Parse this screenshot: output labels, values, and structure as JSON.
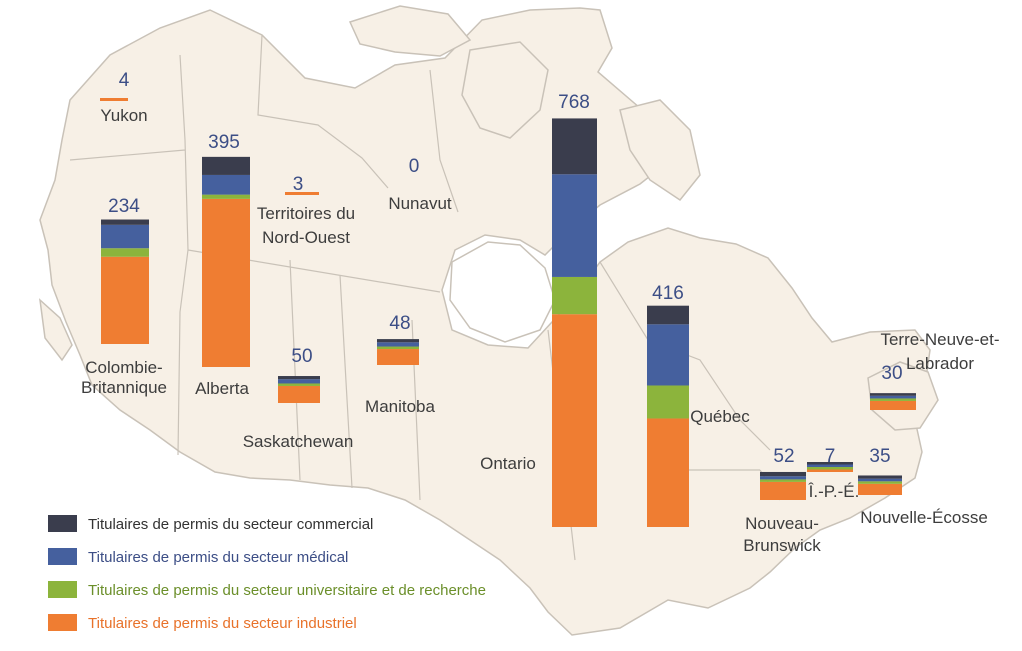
{
  "colors": {
    "commercial": "#3a3d4d",
    "medical": "#45609e",
    "university": "#8cb43c",
    "industrial": "#ef7d32",
    "map_fill": "#f7f0e6",
    "map_stroke": "#c9c2b8"
  },
  "chart_data": {
    "type": "bar",
    "stacked": true,
    "series": [
      {
        "name": "Titulaires de permis du secteur commercial",
        "key": "commercial"
      },
      {
        "name": "Titulaires de permis du secteur médical",
        "key": "medical"
      },
      {
        "name": "Titulaires de permis du secteur universitaire et de recherche",
        "key": "university"
      },
      {
        "name": "Titulaires de permis du secteur industriel",
        "key": "industrial"
      }
    ],
    "regions": [
      {
        "id": "yukon",
        "label": [
          "Yukon"
        ],
        "total": "4",
        "values": {
          "commercial": 0,
          "medical": 0,
          "university": 0,
          "industrial": 4
        }
      },
      {
        "id": "bc",
        "label": [
          "Colombie-",
          "Britannique"
        ],
        "total": "234",
        "values": {
          "commercial": 10,
          "medical": 44,
          "university": 16,
          "industrial": 164
        }
      },
      {
        "id": "alberta",
        "label": [
          "Alberta"
        ],
        "total": "395",
        "values": {
          "commercial": 34,
          "medical": 37,
          "university": 8,
          "industrial": 316
        }
      },
      {
        "id": "nwt",
        "label": [
          "Territoires du",
          "Nord-Ouest"
        ],
        "total": "3",
        "values": {
          "commercial": 0,
          "medical": 0,
          "university": 0,
          "industrial": 3
        }
      },
      {
        "id": "nunavut",
        "label": [
          "Nunavut"
        ],
        "total": "0",
        "values": {
          "commercial": 0,
          "medical": 0,
          "university": 0,
          "industrial": 0
        }
      },
      {
        "id": "saskatchewan",
        "label": [
          "Saskatchewan"
        ],
        "total": "50",
        "values": {
          "commercial": 6,
          "medical": 8,
          "university": 4,
          "industrial": 32
        }
      },
      {
        "id": "manitoba",
        "label": [
          "Manitoba"
        ],
        "total": "48",
        "values": {
          "commercial": 6,
          "medical": 8,
          "university": 4,
          "industrial": 30
        }
      },
      {
        "id": "ontario",
        "label": [
          "Ontario"
        ],
        "total": "768",
        "values": {
          "commercial": 105,
          "medical": 193,
          "university": 70,
          "industrial": 400
        }
      },
      {
        "id": "quebec",
        "label": [
          "Québec"
        ],
        "total": "416",
        "values": {
          "commercial": 35,
          "medical": 115,
          "university": 62,
          "industrial": 204
        }
      },
      {
        "id": "nl",
        "label": [
          "Terre-Neuve-et-",
          "Labrador"
        ],
        "total": "30",
        "values": {
          "commercial": 5,
          "medical": 5,
          "university": 3,
          "industrial": 17
        }
      },
      {
        "id": "nb",
        "label": [
          "Nouveau-",
          "Brunswick"
        ],
        "total": "52",
        "values": {
          "commercial": 8,
          "medical": 6,
          "university": 4,
          "industrial": 34
        }
      },
      {
        "id": "pei",
        "label": [
          "Î.-P.-É."
        ],
        "total": "7",
        "values": {
          "commercial": 2,
          "medical": 2,
          "university": 1,
          "industrial": 2
        }
      },
      {
        "id": "ns",
        "label": [
          "Nouvelle-Écosse"
        ],
        "total": "35",
        "values": {
          "commercial": 6,
          "medical": 5,
          "university": 3,
          "industrial": 21
        }
      }
    ]
  }
}
